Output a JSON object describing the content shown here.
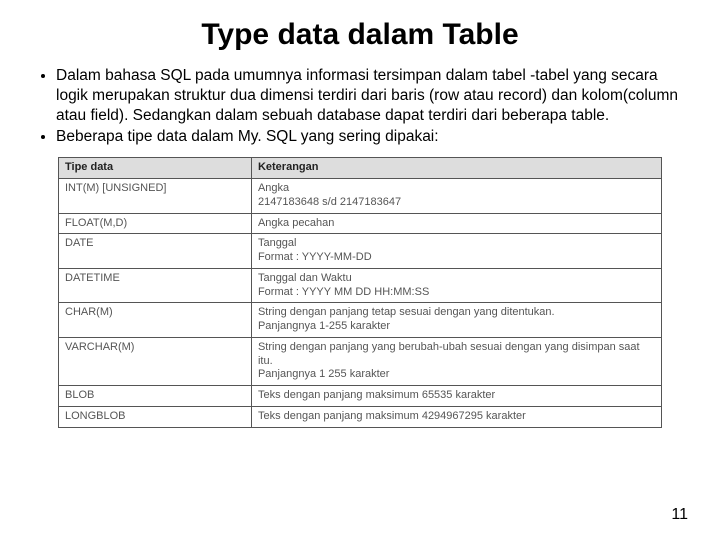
{
  "title": "Type data dalam Table",
  "bullets": [
    "Dalam bahasa SQL pada umumnya informasi tersimpan dalam tabel -tabel yang secara logik merupakan struktur dua dimensi terdiri dari baris (row atau record) dan kolom(column atau field). Sedangkan dalam sebuah database dapat terdiri dari beberapa table.",
    "Beberapa tipe data dalam My. SQL yang sering dipakai:"
  ],
  "table": {
    "type": "table",
    "columns": [
      "Tipe data",
      "Keterangan"
    ],
    "rows": [
      [
        "INT(M) [UNSIGNED]",
        "Angka\n 2147183648 s/d 2147183647"
      ],
      [
        "FLOAT(M,D)",
        "Angka pecahan"
      ],
      [
        "DATE",
        "Tanggal\nFormat : YYYY-MM-DD"
      ],
      [
        "DATETIME",
        "Tanggal dan Waktu\nFormat : YYYY MM DD HH:MM:SS"
      ],
      [
        "CHAR(M)",
        "String dengan panjang tetap sesuai dengan yang ditentukan.\nPanjangnya 1-255 karakter"
      ],
      [
        "VARCHAR(M)",
        "String dengan panjang yang berubah-ubah sesuai dengan yang disimpan saat itu.\nPanjangnya 1   255 karakter"
      ],
      [
        "BLOB",
        "Teks dengan panjang maksimum 65535 karakter"
      ],
      [
        "LONGBLOB",
        "Teks dengan panjang maksimum  4294967295 karakter"
      ]
    ],
    "header_bg": "#dddddd",
    "border_color": "#555555",
    "cell_text_color": "#555555",
    "font_size_pt": 11,
    "col_widths_pct": [
      32,
      68
    ]
  },
  "page_number": "11"
}
